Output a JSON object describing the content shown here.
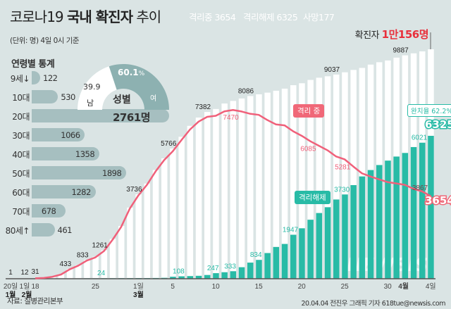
{
  "header": {
    "title_plain": "코로나19 ",
    "title_bold": "국내 확진자",
    "title_tail": " 추이",
    "badges": [
      {
        "label": "격리중 3654",
        "color": "#f06878"
      },
      {
        "label": "격리해제 6325",
        "color": "#28bba6"
      },
      {
        "label": "사망177",
        "color": "#555555"
      }
    ],
    "subtitle": "(단위: 명) 4일 0시 기준",
    "total_label": "확진자 ",
    "total_value": "1만156명"
  },
  "age_panel": {
    "title": "연령별 통계",
    "groups": [
      {
        "label": "9세↓",
        "value": 122
      },
      {
        "label": "10대",
        "value": 530
      },
      {
        "label": "20대",
        "value": 2761,
        "display": "2761명"
      },
      {
        "label": "30대",
        "value": 1066
      },
      {
        "label": "40대",
        "value": 1358
      },
      {
        "label": "50대",
        "value": 1898
      },
      {
        "label": "60대",
        "value": 1282
      },
      {
        "label": "70대",
        "value": 678
      },
      {
        "label": "80세↑",
        "value": 461
      }
    ]
  },
  "gender": {
    "title": "성별",
    "male_label": "남",
    "male_value": "39.9",
    "female_label": "여",
    "female_value": "60.1",
    "female_unit": "%",
    "female_pct": 60.1,
    "male_color": "#ffffff",
    "female_color": "#8db1b1"
  },
  "callouts": {
    "isolated": "격리 중",
    "released": "격리해제",
    "recovery": "완치율 62.2%",
    "isolated_final": "3654",
    "released_final": "6325"
  },
  "colors": {
    "background": "#dae4e4",
    "total_bar": "#ffffff",
    "released_bar": "#28bba6",
    "isolated_line": "#f0607a"
  },
  "chart_data": {
    "type": "bar+line",
    "early_points": [
      {
        "date": "1월 20일",
        "total": 1
      },
      {
        "date": "2월 1일",
        "total": 12
      }
    ],
    "dates": [
      "2/18",
      "2/19",
      "2/20",
      "2/21",
      "2/22",
      "2/23",
      "2/24",
      "2/25",
      "2/26",
      "2/27",
      "2/28",
      "2/29",
      "3/1",
      "3/2",
      "3/3",
      "3/4",
      "3/5",
      "3/6",
      "3/7",
      "3/8",
      "3/9",
      "3/10",
      "3/11",
      "3/12",
      "3/13",
      "3/14",
      "3/15",
      "3/16",
      "3/17",
      "3/18",
      "3/19",
      "3/20",
      "3/21",
      "3/22",
      "3/23",
      "3/24",
      "3/25",
      "3/26",
      "3/27",
      "3/28",
      "3/29",
      "3/30",
      "3/31",
      "4/1",
      "4/2",
      "4/3",
      "4/4"
    ],
    "series": [
      {
        "name": "확진자",
        "type": "bar",
        "values": [
          31,
          51,
          104,
          204,
          433,
          602,
          833,
          977,
          1261,
          1766,
          2337,
          3150,
          3736,
          4212,
          4812,
          5328,
          5766,
          6284,
          6767,
          7134,
          7382,
          7513,
          7755,
          7869,
          7979,
          8086,
          8162,
          8236,
          8320,
          8413,
          8565,
          8652,
          8799,
          8897,
          8961,
          9037,
          9137,
          9241,
          9332,
          9478,
          9583,
          9661,
          9786,
          9887,
          9976,
          10062,
          10156
        ]
      },
      {
        "name": "격리해제",
        "type": "bar",
        "values": [
          12,
          16,
          16,
          16,
          16,
          18,
          22,
          22,
          24,
          24,
          27,
          28,
          30,
          30,
          34,
          41,
          88,
          108,
          118,
          130,
          166,
          247,
          288,
          333,
          510,
          714,
          834,
          1137,
          1407,
          1540,
          1947,
          2233,
          2612,
          2909,
          3166,
          3507,
          3730,
          4144,
          4528,
          4811,
          5033,
          5228,
          5408,
          5567,
          5828,
          6021,
          6325
        ]
      },
      {
        "name": "격리 중",
        "type": "line",
        "values": [
          19,
          35,
          87,
          187,
          415,
          578,
          803,
          945,
          1225,
          1729,
          2297,
          3105,
          3688,
          4159,
          4750,
          5255,
          5643,
          6134,
          6605,
          6954,
          7165,
          7212,
          7407,
          7470,
          7402,
          7300,
          7253,
          7024,
          6832,
          6789,
          6527,
          6325,
          6085,
          5884,
          5684,
          5410,
          5281,
          4966,
          4665,
          4523,
          4398,
          4275,
          4216,
          4155,
          3979,
          3867,
          3654
        ]
      }
    ],
    "total_labels": [
      {
        "date": "2/18",
        "text": "31"
      },
      {
        "date": "2/22",
        "text": "433"
      },
      {
        "date": "2/24",
        "text": "833"
      },
      {
        "date": "2/26",
        "text": "1261"
      },
      {
        "date": "3/1",
        "text": "3736"
      },
      {
        "date": "3/5",
        "text": "5766"
      },
      {
        "date": "3/9",
        "text": "7382"
      },
      {
        "date": "3/14",
        "text": "8086"
      },
      {
        "date": "3/24",
        "text": "9037"
      },
      {
        "date": "4/1",
        "text": "9887"
      }
    ],
    "released_labels": [
      {
        "date": "2/26",
        "text": "24"
      },
      {
        "date": "3/6",
        "text": "108"
      },
      {
        "date": "3/10",
        "text": "247"
      },
      {
        "date": "3/12",
        "text": "333"
      },
      {
        "date": "3/15",
        "text": "834"
      },
      {
        "date": "3/19",
        "text": "1947"
      },
      {
        "date": "3/25",
        "text": "3730"
      },
      {
        "date": "4/3",
        "text": "6021"
      }
    ],
    "isolated_labels": [
      {
        "date": "3/12",
        "text": "7470"
      },
      {
        "date": "3/21",
        "text": "6085"
      },
      {
        "date": "3/25",
        "text": "5281"
      },
      {
        "date": "4/3",
        "text": "3867"
      }
    ],
    "x_tick_labels": [
      {
        "date": "1/20",
        "text": "20일"
      },
      {
        "date": "2/1",
        "text": "1일"
      },
      {
        "date": "2/18",
        "text": "18"
      },
      {
        "date": "2/25",
        "text": "25"
      },
      {
        "date": "3/1",
        "text": "1일"
      },
      {
        "date": "3/5",
        "text": "5"
      },
      {
        "date": "3/10",
        "text": "10"
      },
      {
        "date": "3/15",
        "text": "15"
      },
      {
        "date": "3/20",
        "text": "20"
      },
      {
        "date": "3/25",
        "text": "25"
      },
      {
        "date": "3/30",
        "text": "30"
      },
      {
        "date": "4/1",
        "text": "4월"
      },
      {
        "date": "4/4",
        "text": "4일"
      }
    ],
    "month_labels": [
      "1월",
      "2월",
      "3월"
    ],
    "ylim": [
      0,
      10156
    ]
  },
  "footer": {
    "source": "자료: 질병관리본부",
    "credit": "20.04.04 전진우 그래픽 기자 618tue@newsis.com",
    "watermark": "NEWSIS"
  }
}
